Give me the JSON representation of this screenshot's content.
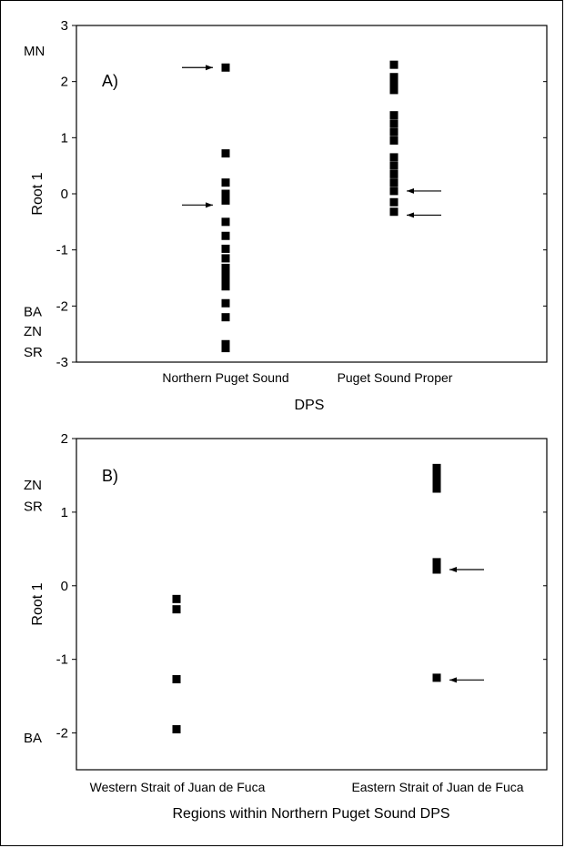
{
  "chart_data": [
    {
      "type": "scatter",
      "panel_label": "A)",
      "xlabel": "DPS",
      "ylabel": "Root 1",
      "ylim": [
        -3,
        3
      ],
      "yticks": [
        3,
        2,
        1,
        0,
        -1,
        -2,
        -3
      ],
      "categories": [
        "Northern Puget Sound",
        "Puget Sound Proper"
      ],
      "side_labels": [
        {
          "text": "MN",
          "y": 2.55
        },
        {
          "text": "BA",
          "y": -2.1
        },
        {
          "text": "ZN",
          "y": -2.45
        },
        {
          "text": "SR",
          "y": -2.82
        }
      ],
      "points": [
        {
          "category": 0,
          "y": 2.25
        },
        {
          "category": 0,
          "y": 0.72
        },
        {
          "category": 0,
          "y": 0.2
        },
        {
          "category": 0,
          "y": 0.0
        },
        {
          "category": 0,
          "y": -0.12
        },
        {
          "category": 0,
          "y": -0.5
        },
        {
          "category": 0,
          "y": -0.75
        },
        {
          "category": 0,
          "y": -0.98
        },
        {
          "category": 0,
          "y": -1.15
        },
        {
          "category": 0,
          "y": -1.32
        },
        {
          "category": 0,
          "y": -1.45
        },
        {
          "category": 0,
          "y": -1.55
        },
        {
          "category": 0,
          "y": -1.65
        },
        {
          "category": 0,
          "y": -1.95
        },
        {
          "category": 0,
          "y": -2.2
        },
        {
          "category": 0,
          "y": -2.68
        },
        {
          "category": 0,
          "y": -2.75
        },
        {
          "category": 1,
          "y": 2.3
        },
        {
          "category": 1,
          "y": 2.08
        },
        {
          "category": 1,
          "y": 1.95
        },
        {
          "category": 1,
          "y": 1.85
        },
        {
          "category": 1,
          "y": 1.4
        },
        {
          "category": 1,
          "y": 1.25
        },
        {
          "category": 1,
          "y": 1.1
        },
        {
          "category": 1,
          "y": 0.95
        },
        {
          "category": 1,
          "y": 0.65
        },
        {
          "category": 1,
          "y": 0.5
        },
        {
          "category": 1,
          "y": 0.35
        },
        {
          "category": 1,
          "y": 0.2
        },
        {
          "category": 1,
          "y": 0.05
        },
        {
          "category": 1,
          "y": -0.15
        },
        {
          "category": 1,
          "y": -0.32
        }
      ],
      "arrows": [
        {
          "category": 0,
          "y": 2.25,
          "side": "left"
        },
        {
          "category": 0,
          "y": -0.2,
          "side": "left"
        },
        {
          "category": 1,
          "y": 0.05,
          "side": "right"
        },
        {
          "category": 1,
          "y": -0.38,
          "side": "right"
        }
      ]
    },
    {
      "type": "scatter",
      "panel_label": "B)",
      "xlabel": "Regions within Northern Puget Sound DPS",
      "ylabel": "Root 1",
      "ylim": [
        -2.5,
        2
      ],
      "yticks": [
        2,
        1,
        0,
        -1,
        -2
      ],
      "categories": [
        "Western Strait of Juan de Fuca",
        "Eastern Strait of Juan de Fuca"
      ],
      "side_labels": [
        {
          "text": "ZN",
          "y": 1.37
        },
        {
          "text": "SR",
          "y": 1.08
        },
        {
          "text": "BA",
          "y": -2.07
        }
      ],
      "points": [
        {
          "category": 0,
          "y": -0.18
        },
        {
          "category": 0,
          "y": -0.32
        },
        {
          "category": 0,
          "y": -1.27
        },
        {
          "category": 0,
          "y": -1.95
        },
        {
          "category": 1,
          "y": 1.6
        },
        {
          "category": 1,
          "y": 1.5
        },
        {
          "category": 1,
          "y": 1.4
        },
        {
          "category": 1,
          "y": 1.32
        },
        {
          "category": 1,
          "y": 0.32
        },
        {
          "category": 1,
          "y": 0.22
        },
        {
          "category": 1,
          "y": -1.25
        }
      ],
      "arrows": [
        {
          "category": 1,
          "y": 0.22,
          "side": "right"
        },
        {
          "category": 1,
          "y": -1.28,
          "side": "right"
        }
      ]
    }
  ]
}
